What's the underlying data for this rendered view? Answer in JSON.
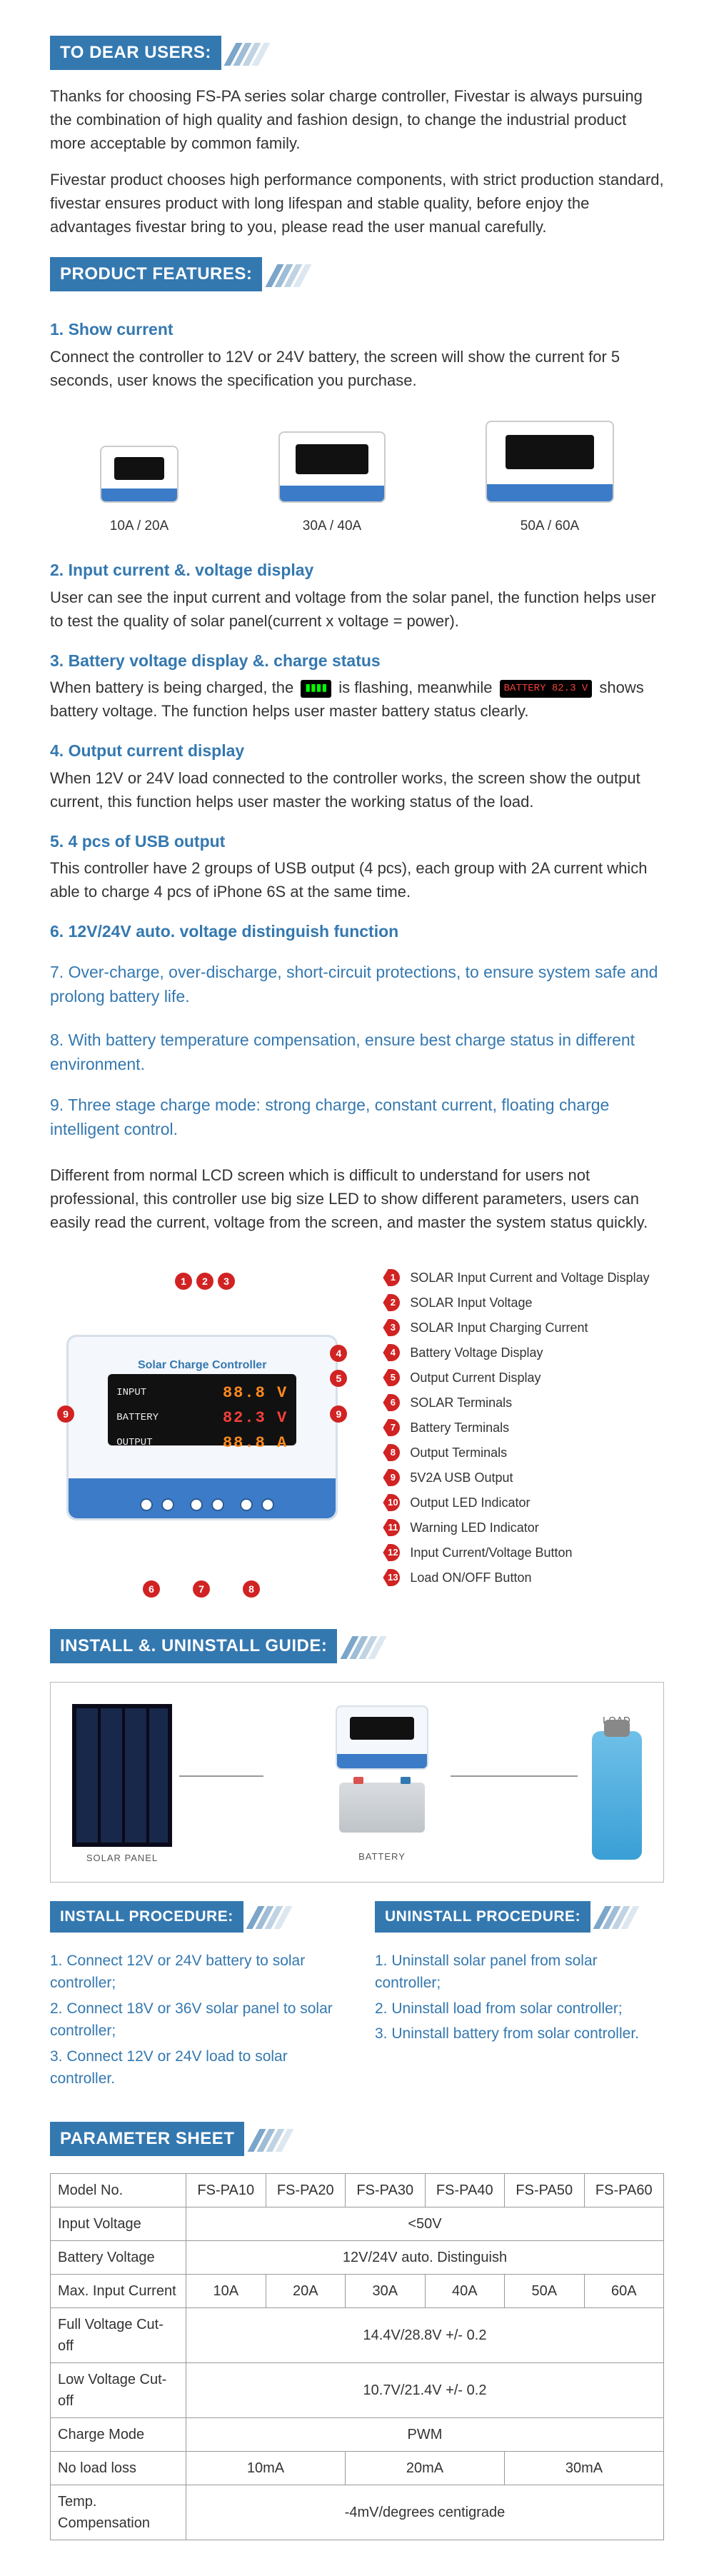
{
  "headers": {
    "dear_users": "TO DEAR USERS:",
    "features": "PRODUCT FEATURES:",
    "install_guide": "INSTALL &. UNINSTALL GUIDE:",
    "install_proc": "INSTALL PROCEDURE:",
    "uninstall_proc": "UNINSTALL PROCEDURE:",
    "param_sheet": "PARAMETER SHEET"
  },
  "intro": {
    "p1": "Thanks for choosing FS-PA series solar charge controller, Fivestar is always pursuing the combination of high quality and fashion design, to change the industrial product more acceptable by common family.",
    "p2": "Fivestar product chooses high performance components, with strict production standard, fivestar ensures product with long lifespan and stable quality, before enjoy the advantages fivestar bring to you, please read the user manual carefully."
  },
  "features": {
    "f1_t": "1. Show current",
    "f1_b": "Connect the controller to 12V or 24V battery, the screen will show the current for 5 seconds, user knows the specification you purchase.",
    "f2_t": "2. Input current &. voltage display",
    "f2_b": "User can see the input current and voltage from the solar panel, the function helps user to test the quality of solar panel(current x voltage = power).",
    "f3_t": "3. Battery voltage display &. charge status",
    "f3_b_a": "When battery is being charged, the",
    "f3_b_b": "is flashing, meanwhile",
    "f3_b_c": "shows battery voltage. The function helps user master battery status clearly.",
    "f4_t": "4. Output current display",
    "f4_b": "When 12V or 24V load connected to the controller works, the screen show the output current, this function helps user master the working status of the load.",
    "f5_t": "5. 4 pcs of USB output",
    "f5_b": "This controller have 2 groups of USB output (4 pcs), each group with 2A current which able to charge 4 pcs of iPhone 6S at the same time.",
    "f6_t": "6. 12V/24V auto. voltage distinguish function",
    "f7_t": "7. Over-charge, over-discharge, short-circuit protections, to ensure system safe and prolong battery life.",
    "f8_t": "8. With battery temperature compensation, ensure best charge status in different environment.",
    "f9_t": "9. Three stage charge mode: strong charge, constant current, floating charge intelligent control.",
    "closing": "Different from normal LCD screen which is difficult to understand for users not professional, this controller use big size LED to show different parameters, users can easily read the current, voltage from the screen, and master the system status quickly."
  },
  "products": {
    "a": "10A / 20A",
    "b": "30A / 40A",
    "c": "50A / 60A"
  },
  "diagram": {
    "title": "Solar Charge Controller",
    "row_input": "INPUT",
    "row_battery": "BATTERY",
    "row_output": "OUTPUT",
    "val_input": "88.8 V",
    "val_battery": "82.3 V",
    "val_output": "88.8 A"
  },
  "legend": [
    "SOLAR Input Current and Voltage Display",
    "SOLAR Input Voltage",
    "SOLAR Input Charging Current",
    "Battery Voltage Display",
    "Output Current Display",
    "SOLAR Terminals",
    "Battery Terminals",
    "Output Terminals",
    "5V2A USB Output",
    "Output LED Indicator",
    "Warning LED Indicator",
    "Input Current/Voltage Button",
    "Load ON/OFF Button"
  ],
  "install_labels": {
    "panel": "SOLAR PANEL",
    "battery": "BATTERY",
    "load": "LOAD"
  },
  "install_steps": [
    "1. Connect 12V or 24V battery to solar controller;",
    "2. Connect 18V or 36V solar panel to solar controller;",
    "3. Connect 12V or 24V load to solar controller."
  ],
  "uninstall_steps": [
    "1. Uninstall solar panel from solar controller;",
    "2. Uninstall load from solar controller;",
    "3. Uninstall battery from solar controller."
  ],
  "param": {
    "cols": [
      "Model No.",
      "FS-PA10",
      "FS-PA20",
      "FS-PA30",
      "FS-PA40",
      "FS-PA50",
      "FS-PA60"
    ],
    "rows": [
      {
        "label": "Input Voltage",
        "span": 6,
        "val": "<50V"
      },
      {
        "label": "Battery Voltage",
        "span": 6,
        "val": "12V/24V auto. Distinguish"
      },
      {
        "label": "Max. Input Current",
        "cells": [
          "10A",
          "20A",
          "30A",
          "40A",
          "50A",
          "60A"
        ]
      },
      {
        "label": "Full Voltage Cut-off",
        "span": 6,
        "val": "14.4V/28.8V +/- 0.2"
      },
      {
        "label": "Low Voltage Cut-off",
        "span": 6,
        "val": "10.7V/21.4V +/- 0.2"
      },
      {
        "label": "Charge Mode",
        "span": 6,
        "val": "PWM"
      },
      {
        "label": "No load loss",
        "merges": [
          [
            "10mA",
            2
          ],
          [
            "20mA",
            2
          ],
          [
            "30mA",
            2
          ]
        ]
      },
      {
        "label": "Temp. Compensation",
        "span": 6,
        "val": "-4mV/degrees centigrade"
      }
    ]
  },
  "colors": {
    "brand": "#3478b0",
    "callout": "#d12323",
    "base": "#3c7bc7"
  }
}
